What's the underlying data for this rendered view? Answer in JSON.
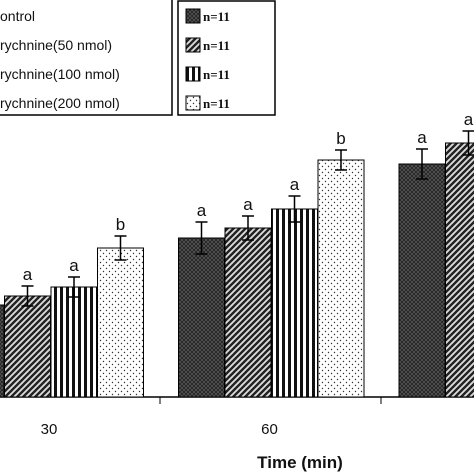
{
  "chart_data": {
    "type": "bar",
    "xlabel": "Time (min)",
    "categories": [
      "30",
      "60",
      null
    ],
    "ylim": [
      0,
      400
    ],
    "series": [
      {
        "name": "ontrol",
        "pattern": "crosshatch",
        "values": [
          92,
          159,
          233
        ],
        "errors": [
          14,
          16,
          15
        ],
        "letters": [
          null,
          "a",
          "a"
        ],
        "n_label": "n=11"
      },
      {
        "name": "rychnine(50 nmol)",
        "pattern": "diagonal",
        "values": [
          101,
          169,
          254
        ],
        "errors": [
          10,
          12,
          12
        ],
        "letters": [
          "a",
          "a",
          "a"
        ],
        "n_label": "n=11"
      },
      {
        "name": "rychnine(100 nmol)",
        "pattern": "vertical",
        "values": [
          110,
          188,
          null
        ],
        "errors": [
          10,
          13,
          null
        ],
        "letters": [
          "a",
          "a",
          null
        ],
        "n_label": "n=11"
      },
      {
        "name": "rychnine(200 nmol)",
        "pattern": "dots",
        "values": [
          149,
          237,
          null
        ],
        "errors": [
          12,
          10,
          null
        ],
        "letters": [
          "b",
          "b",
          null
        ],
        "n_label": "n=11"
      }
    ]
  }
}
